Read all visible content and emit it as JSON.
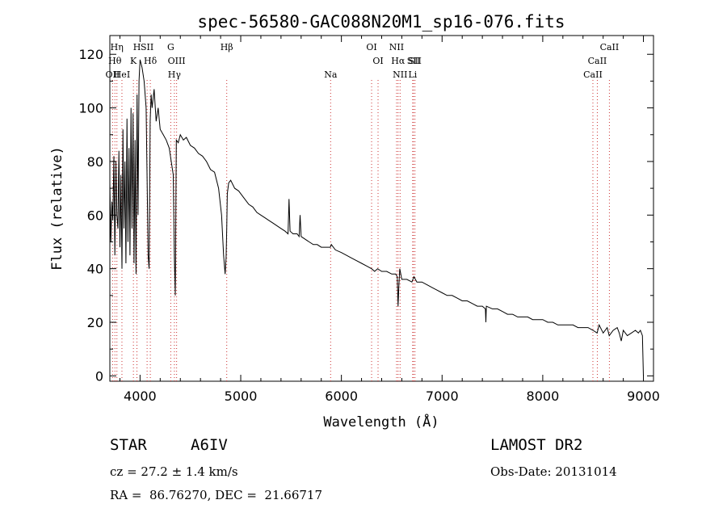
{
  "chart_data": {
    "type": "line",
    "title": "spec-56580-GAC088N20M1_sp16-076.fits",
    "xlabel": "Wavelength (Å)",
    "ylabel": "Flux (relative)",
    "xlim": [
      3700,
      9100
    ],
    "ylim": [
      -2,
      127
    ],
    "xticks": [
      4000,
      5000,
      6000,
      7000,
      8000,
      9000
    ],
    "yticks": [
      0,
      20,
      40,
      60,
      80,
      100,
      120
    ],
    "grid": false,
    "series": [
      {
        "x": [
          3700,
          3710,
          3720,
          3730,
          3740,
          3750,
          3760,
          3770,
          3780,
          3790,
          3800,
          3810,
          3820,
          3830,
          3840,
          3850,
          3860,
          3870,
          3880,
          3890,
          3900,
          3910,
          3920,
          3930,
          3940,
          3950,
          3960,
          3970,
          3980,
          3990,
          4000,
          4020,
          4040,
          4060,
          4080,
          4090,
          4100,
          4110,
          4120,
          4140,
          4160,
          4180,
          4200,
          4230,
          4260,
          4290,
          4310,
          4330,
          4340,
          4350,
          4360,
          4380,
          4400,
          4430,
          4460,
          4500,
          4540,
          4580,
          4620,
          4660,
          4700,
          4740,
          4780,
          4810,
          4830,
          4845,
          4855,
          4861,
          4867,
          4880,
          4900,
          4940,
          4980,
          5000,
          5040,
          5080,
          5120,
          5160,
          5200,
          5240,
          5280,
          5320,
          5360,
          5400,
          5440,
          5470,
          5480,
          5490,
          5520,
          5560,
          5580,
          5590,
          5600,
          5640,
          5680,
          5720,
          5760,
          5800,
          5850,
          5890,
          5900,
          5940,
          6000,
          6050,
          6100,
          6150,
          6200,
          6250,
          6300,
          6330,
          6360,
          6400,
          6450,
          6500,
          6540,
          6555,
          6563,
          6570,
          6580,
          6600,
          6650,
          6700,
          6720,
          6750,
          6800,
          6850,
          6900,
          6950,
          7000,
          7050,
          7100,
          7150,
          7200,
          7250,
          7300,
          7350,
          7400,
          7430,
          7435,
          7440,
          7500,
          7550,
          7600,
          7650,
          7700,
          7750,
          7800,
          7850,
          7900,
          7950,
          8000,
          8050,
          8100,
          8150,
          8200,
          8250,
          8300,
          8350,
          8400,
          8450,
          8500,
          8540,
          8560,
          8600,
          8640,
          8660,
          8700,
          8740,
          8760,
          8780,
          8800,
          8840,
          8880,
          8920,
          8950,
          8970,
          8990,
          9000
        ],
        "values": [
          72,
          50,
          65,
          58,
          82,
          45,
          80,
          60,
          55,
          84,
          48,
          75,
          40,
          92,
          55,
          80,
          42,
          96,
          50,
          85,
          45,
          100,
          55,
          98,
          42,
          88,
          38,
          105,
          60,
          110,
          118,
          115,
          110,
          100,
          45,
          40,
          95,
          105,
          100,
          107,
          95,
          100,
          92,
          90,
          88,
          85,
          80,
          75,
          45,
          30,
          88,
          87,
          90,
          88,
          89,
          86,
          85,
          83,
          82,
          80,
          77,
          76,
          70,
          60,
          45,
          38,
          44,
          55,
          68,
          72,
          73,
          70,
          69,
          68,
          66,
          64,
          63,
          61,
          60,
          59,
          58,
          57,
          56,
          55,
          54,
          53,
          66,
          54,
          53,
          53,
          52,
          60,
          52,
          51,
          50,
          49,
          49,
          48,
          48,
          48,
          49,
          47,
          46,
          45,
          44,
          43,
          42,
          41,
          40,
          39,
          40,
          39,
          39,
          38,
          38,
          37,
          26,
          33,
          40,
          36,
          36,
          35,
          37,
          35,
          35,
          34,
          33,
          32,
          31,
          30,
          30,
          29,
          28,
          28,
          27,
          26,
          26,
          25,
          20,
          26,
          25,
          25,
          24,
          23,
          23,
          22,
          22,
          22,
          21,
          21,
          21,
          20,
          20,
          19,
          19,
          19,
          19,
          18,
          18,
          18,
          17,
          16,
          19,
          16,
          18,
          15,
          17,
          18,
          16,
          13,
          17,
          15,
          16,
          17,
          16,
          17,
          15,
          0
        ]
      }
    ],
    "annotations": [
      {
        "label": "OII",
        "x": 3727
      },
      {
        "label": "Hθ",
        "x": 3750
      },
      {
        "label": "Hη",
        "x": 3770
      },
      {
        "label": "HeI",
        "x": 3820
      },
      {
        "label": "K",
        "x": 3934
      },
      {
        "label": "H",
        "x": 3969
      },
      {
        "label": "SII",
        "x": 4070
      },
      {
        "label": "Hδ",
        "x": 4102
      },
      {
        "label": "G",
        "x": 4305
      },
      {
        "label": "OIII",
        "x": 4363
      },
      {
        "label": "Hγ",
        "x": 4341
      },
      {
        "label": "Hβ",
        "x": 4861
      },
      {
        "label": "Na",
        "x": 5893
      },
      {
        "label": "OI",
        "x": 6300
      },
      {
        "label": "OI",
        "x": 6364
      },
      {
        "label": "NII",
        "x": 6548
      },
      {
        "label": "Hα",
        "x": 6563
      },
      {
        "label": "NII",
        "x": 6583
      },
      {
        "label": "SII",
        "x": 6716
      },
      {
        "label": "SII",
        "x": 6731
      },
      {
        "label": "Li",
        "x": 6708
      },
      {
        "label": "CaII",
        "x": 8498
      },
      {
        "label": "CaII",
        "x": 8542
      },
      {
        "label": "CaII",
        "x": 8662
      }
    ]
  },
  "info": {
    "object_class": "STAR",
    "subclass": "A6IV",
    "survey": "LAMOST DR2",
    "redshift": "cz = 27.2 ± 1.4 km/s",
    "obs_date": "Obs-Date: 20131014",
    "coords": "RA =  86.76270, DEC =  21.66717"
  }
}
